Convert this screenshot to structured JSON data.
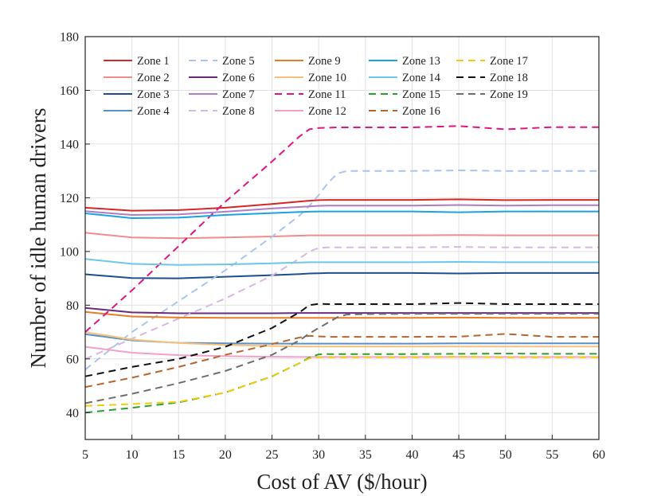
{
  "chart_data": {
    "type": "line",
    "title": "",
    "xlabel": "Cost of AV ($/hour)",
    "ylabel": "Number of idle human drivers",
    "xlim": [
      5,
      60
    ],
    "ylim": [
      30,
      180
    ],
    "xticks": [
      5,
      10,
      15,
      20,
      25,
      30,
      35,
      40,
      45,
      50,
      55,
      60
    ],
    "yticks": [
      40,
      60,
      80,
      100,
      120,
      140,
      160,
      180
    ],
    "grid": true,
    "legend_position": "top",
    "x": [
      5,
      10,
      15,
      20,
      25,
      28,
      29,
      30,
      31,
      32,
      33,
      35,
      40,
      45,
      50,
      55,
      60
    ],
    "series": [
      {
        "name": "Zone 1",
        "color": "#d62728",
        "dash": "solid",
        "values": [
          116.3,
          115.2,
          115.4,
          116.3,
          117.7,
          118.6,
          118.9,
          119.1,
          119.2,
          119.2,
          119.2,
          119.2,
          119.2,
          119.4,
          119.1,
          119.2,
          119.2
        ]
      },
      {
        "name": "Zone 2",
        "color": "#f08c8c",
        "dash": "solid",
        "values": [
          107.0,
          105.2,
          104.9,
          105.2,
          105.6,
          105.9,
          106.0,
          106.0,
          106.0,
          106.0,
          106.0,
          106.0,
          106.0,
          106.1,
          106.0,
          106.0,
          106.0
        ]
      },
      {
        "name": "Zone 3",
        "color": "#1f4e8c",
        "dash": "solid",
        "values": [
          91.5,
          90.1,
          90.0,
          90.6,
          91.2,
          91.6,
          91.8,
          91.9,
          92.0,
          92.0,
          92.0,
          92.0,
          92.0,
          91.8,
          92.0,
          92.0,
          92.0
        ]
      },
      {
        "name": "Zone 4",
        "color": "#5b8fc7",
        "dash": "solid",
        "values": [
          69.2,
          66.9,
          66.0,
          65.8,
          65.7,
          65.7,
          65.7,
          65.7,
          65.7,
          65.7,
          65.7,
          65.7,
          65.7,
          65.8,
          65.8,
          65.8,
          65.8
        ]
      },
      {
        "name": "Zone 5",
        "color": "#a9c6e8",
        "dash": "dashed",
        "values": [
          56.0,
          70.0,
          81.5,
          93.0,
          105.5,
          113.5,
          117.0,
          121.0,
          125.5,
          129.0,
          130.0,
          130.0,
          130.0,
          130.2,
          130.0,
          130.0,
          130.0
        ]
      },
      {
        "name": "Zone 6",
        "color": "#6a2c7a",
        "dash": "solid",
        "values": [
          79.0,
          77.3,
          77.0,
          77.0,
          77.0,
          77.1,
          77.1,
          77.1,
          77.1,
          77.1,
          77.1,
          77.1,
          77.1,
          77.1,
          77.1,
          77.1,
          77.1
        ]
      },
      {
        "name": "Zone 7",
        "color": "#b07cc6",
        "dash": "solid",
        "values": [
          115.0,
          113.6,
          113.8,
          114.8,
          116.0,
          116.6,
          116.8,
          117.0,
          117.1,
          117.1,
          117.1,
          117.1,
          117.1,
          117.3,
          117.1,
          117.2,
          117.2
        ]
      },
      {
        "name": "Zone 8",
        "color": "#d6b8e0",
        "dash": "dashed",
        "values": [
          60.0,
          67.5,
          75.0,
          82.5,
          91.0,
          97.5,
          100.0,
          101.3,
          101.5,
          101.5,
          101.5,
          101.5,
          101.5,
          101.7,
          101.5,
          101.5,
          101.5
        ]
      },
      {
        "name": "Zone 9",
        "color": "#e87d25",
        "dash": "solid",
        "values": [
          77.5,
          75.8,
          75.4,
          75.3,
          75.3,
          75.3,
          75.3,
          75.3,
          75.3,
          75.3,
          75.3,
          75.3,
          75.3,
          75.4,
          75.3,
          75.3,
          75.3
        ]
      },
      {
        "name": "Zone 10",
        "color": "#f6c27a",
        "dash": "solid",
        "values": [
          70.0,
          67.2,
          65.9,
          65.2,
          64.8,
          64.6,
          64.6,
          64.6,
          64.6,
          64.6,
          64.6,
          64.6,
          64.6,
          64.6,
          64.6,
          64.6,
          64.6
        ]
      },
      {
        "name": "Zone 11",
        "color": "#e0157f",
        "dash": "dashed",
        "values": [
          70.0,
          85.5,
          102.0,
          118.5,
          133.5,
          143.0,
          145.5,
          146.0,
          146.1,
          146.2,
          146.2,
          146.2,
          146.2,
          146.7,
          145.5,
          146.3,
          146.3
        ]
      },
      {
        "name": "Zone 12",
        "color": "#f4a0c8",
        "dash": "solid",
        "values": [
          64.5,
          62.3,
          61.4,
          61.0,
          60.8,
          60.7,
          60.7,
          60.7,
          60.7,
          60.7,
          60.7,
          60.7,
          60.7,
          60.7,
          60.7,
          60.7,
          60.7
        ]
      },
      {
        "name": "Zone 13",
        "color": "#1aa3e0",
        "dash": "solid",
        "values": [
          114.2,
          112.4,
          112.6,
          113.6,
          114.3,
          114.7,
          114.8,
          114.9,
          114.9,
          114.9,
          114.9,
          114.9,
          114.9,
          114.6,
          114.9,
          114.9,
          114.9
        ]
      },
      {
        "name": "Zone 14",
        "color": "#6ec6ea",
        "dash": "solid",
        "values": [
          97.2,
          95.4,
          95.0,
          95.2,
          95.6,
          95.9,
          96.0,
          96.0,
          96.0,
          96.0,
          96.0,
          96.0,
          96.0,
          96.1,
          96.0,
          96.0,
          96.0
        ]
      },
      {
        "name": "Zone 15",
        "color": "#2ca02c",
        "dash": "dashed",
        "values": [
          40.0,
          41.8,
          43.8,
          47.5,
          53.5,
          58.5,
          60.5,
          61.7,
          61.8,
          61.8,
          61.8,
          61.8,
          61.8,
          61.9,
          62.0,
          61.9,
          61.9
        ]
      },
      {
        "name": "Zone 16",
        "color": "#b5652e",
        "dash": "dashed",
        "values": [
          49.5,
          53.0,
          57.0,
          61.5,
          65.5,
          68.0,
          68.6,
          68.4,
          68.2,
          68.2,
          68.2,
          68.2,
          68.2,
          68.3,
          69.3,
          68.2,
          68.2
        ]
      },
      {
        "name": "Zone 17",
        "color": "#f2cc0c",
        "dash": "dashed",
        "values": [
          42.5,
          43.2,
          44.0,
          47.5,
          53.5,
          58.5,
          60.2,
          60.6,
          60.6,
          60.6,
          60.6,
          60.6,
          60.6,
          60.8,
          60.6,
          60.6,
          60.6
        ]
      },
      {
        "name": "Zone 18",
        "color": "#111111",
        "dash": "dashed",
        "values": [
          53.5,
          57.0,
          60.0,
          64.5,
          71.5,
          77.5,
          80.0,
          80.5,
          80.4,
          80.4,
          80.4,
          80.4,
          80.4,
          80.8,
          80.4,
          80.4,
          80.4
        ]
      },
      {
        "name": "Zone 19",
        "color": "#6d6d6d",
        "dash": "dashed",
        "values": [
          43.5,
          47.0,
          51.0,
          55.5,
          61.5,
          67.0,
          69.5,
          71.5,
          73.5,
          75.5,
          76.5,
          76.7,
          76.8,
          76.8,
          76.8,
          76.8,
          76.8
        ]
      }
    ]
  }
}
